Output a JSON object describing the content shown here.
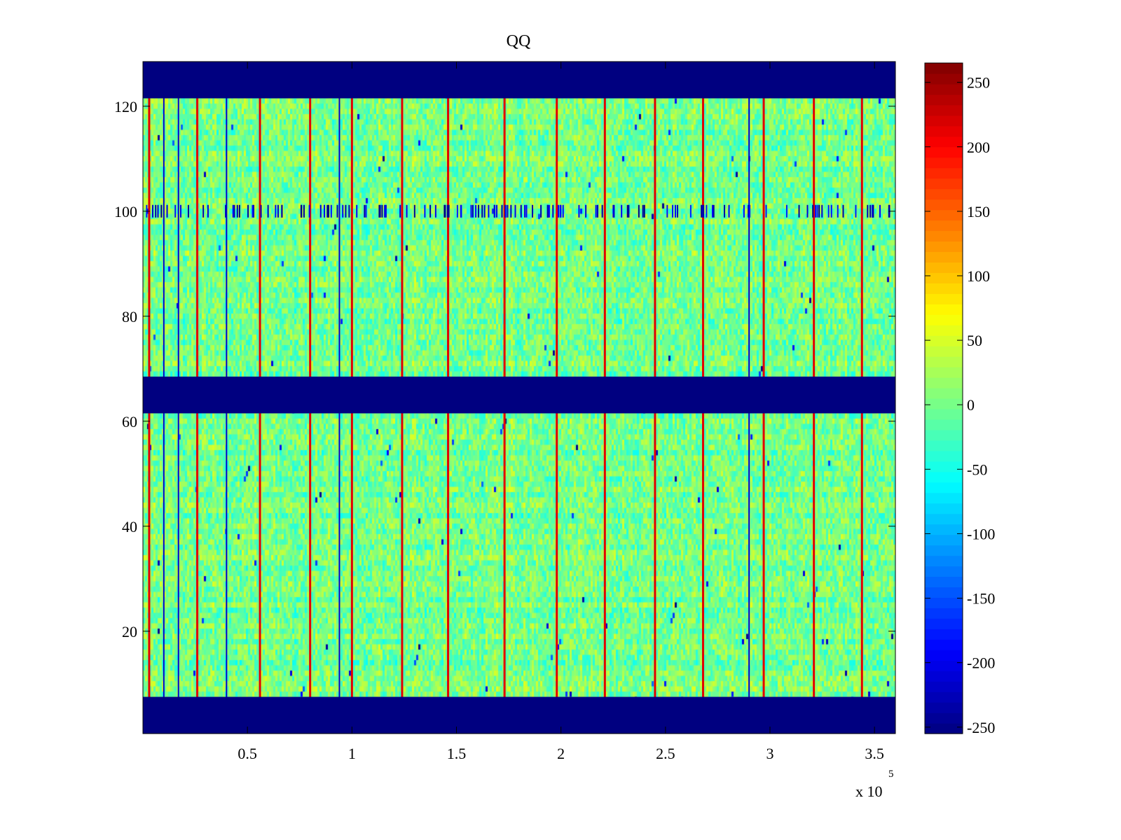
{
  "chart_data": {
    "type": "heatmap",
    "title": "QQ",
    "xlabel": "",
    "ylabel": "",
    "x_exponent_label": "x 10",
    "x_exponent_power": "5",
    "xlim": [
      0,
      3.6
    ],
    "ylim": [
      0.5,
      128.5
    ],
    "x_ticks": [
      {
        "value": 0.5,
        "label": "0.5"
      },
      {
        "value": 1.0,
        "label": "1"
      },
      {
        "value": 1.5,
        "label": "1.5"
      },
      {
        "value": 2.0,
        "label": "2"
      },
      {
        "value": 2.5,
        "label": "2.5"
      },
      {
        "value": 3.0,
        "label": "3"
      },
      {
        "value": 3.5,
        "label": "3.5"
      }
    ],
    "y_ticks": [
      {
        "value": 20,
        "label": "20"
      },
      {
        "value": 40,
        "label": "40"
      },
      {
        "value": 60,
        "label": "60"
      },
      {
        "value": 80,
        "label": "80"
      },
      {
        "value": 100,
        "label": "100"
      },
      {
        "value": 120,
        "label": "120"
      }
    ],
    "colorbar": {
      "colormap": "jet",
      "clim": [
        -255,
        265
      ],
      "ticks": [
        {
          "value": 250,
          "label": "250"
        },
        {
          "value": 200,
          "label": "200"
        },
        {
          "value": 150,
          "label": "150"
        },
        {
          "value": 100,
          "label": "100"
        },
        {
          "value": 50,
          "label": "50"
        },
        {
          "value": 0,
          "label": "0"
        },
        {
          "value": -50,
          "label": "-50"
        },
        {
          "value": -100,
          "label": "-100"
        },
        {
          "value": -150,
          "label": "-150"
        },
        {
          "value": -200,
          "label": "-200"
        },
        {
          "value": -250,
          "label": "-250"
        }
      ]
    },
    "masked_row_bands": [
      {
        "y_from": 0.5,
        "y_to": 7.5,
        "value": -255
      },
      {
        "y_from": 61.5,
        "y_to": 68.5,
        "value": -255
      },
      {
        "y_from": 121.5,
        "y_to": 128.5,
        "value": -255
      }
    ],
    "typical_value_range": [
      -40,
      40
    ],
    "high_value_columns_x": [
      0.03,
      0.26,
      0.56,
      0.8,
      1.0,
      1.24,
      1.46,
      1.73,
      1.98,
      2.21,
      2.45,
      2.68,
      2.97,
      3.21,
      3.44
    ],
    "low_value_columns_x": [
      0.1,
      0.17,
      0.4,
      0.94,
      2.9
    ],
    "low_value_row": 100,
    "grid": false
  }
}
